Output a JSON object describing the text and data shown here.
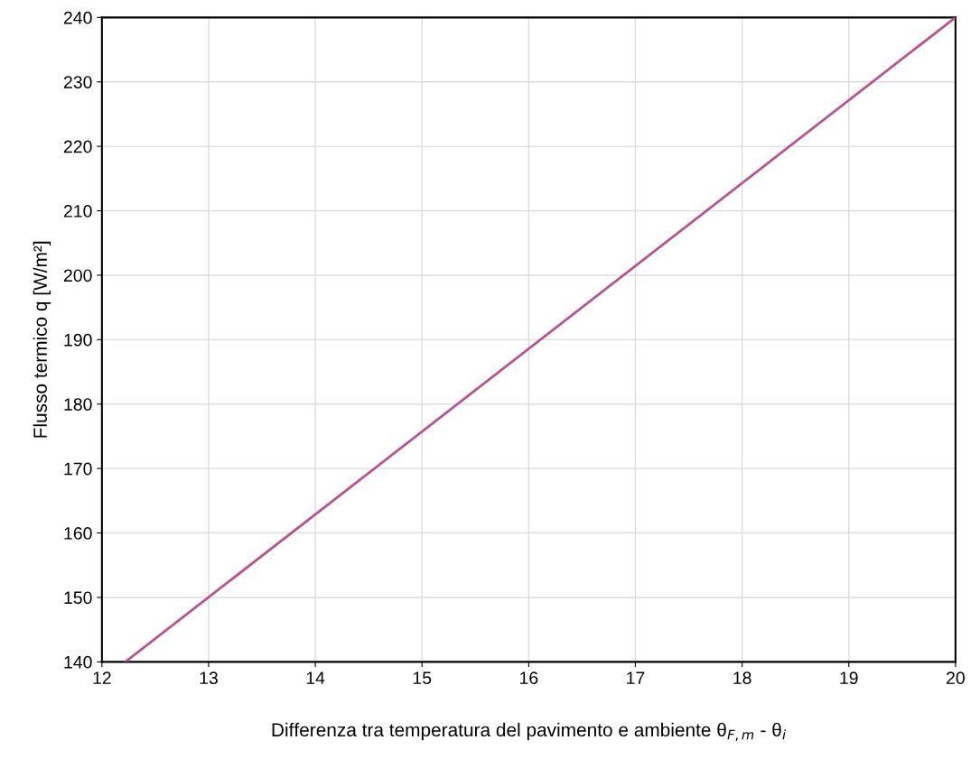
{
  "chart_data": {
    "type": "line",
    "xlabel": "Differenza tra temperatura del pavimento e ambiente θ$_{F,m}$ - θ$_{i}$",
    "ylabel": "Flusso termico q [W/m²]",
    "x": [
      12.22,
      20
    ],
    "series": [
      {
        "color": "#b5558f",
        "values": [
          140,
          240
        ]
      }
    ],
    "xlim": [
      12,
      20
    ],
    "xticks": [
      12,
      13,
      14,
      15,
      16,
      17,
      18,
      19,
      20
    ],
    "ylim": [
      140,
      240
    ],
    "yticks": [
      140,
      150,
      160,
      170,
      180,
      190,
      200,
      210,
      220,
      230,
      240
    ],
    "grid": true,
    "marker": "none",
    "line_style": "solid"
  }
}
